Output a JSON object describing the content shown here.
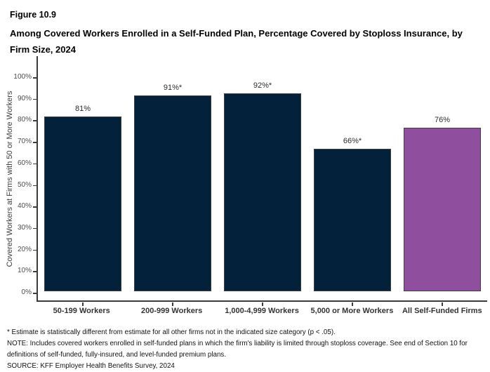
{
  "figure": {
    "number": "Figure 10.9",
    "title": "Among Covered Workers Enrolled in a Self-Funded Plan, Percentage Covered by Stoploss Insurance, by Firm Size, 2024"
  },
  "chart_data": {
    "type": "bar",
    "title": "Among Covered Workers Enrolled in a Self-Funded Plan, Percentage Covered by Stoploss Insurance, by Firm Size, 2024",
    "categories": [
      "50-199 Workers",
      "200-999 Workers",
      "1,000-4,999 Workers",
      "5,000 or More Workers",
      "All Self-Funded Firms"
    ],
    "values": [
      81,
      91,
      92,
      66,
      76
    ],
    "bar_labels": [
      "81%",
      "91%*",
      "92%*",
      "66%*",
      "76%"
    ],
    "bar_colors": [
      "#03213A",
      "#03213A",
      "#03213A",
      "#03213A",
      "#8F4F9E"
    ],
    "xlabel": "",
    "ylabel": "Covered Workers at Firms with 50 or More Workers",
    "ylim": [
      0,
      100
    ],
    "yticks": [
      0,
      10,
      20,
      30,
      40,
      50,
      60,
      70,
      80,
      90,
      100
    ],
    "ytick_labels": [
      "0%",
      "10%",
      "20%",
      "30%",
      "40%",
      "50%",
      "60%",
      "70%",
      "80%",
      "90%",
      "100%"
    ],
    "grid": false,
    "legend": "none"
  },
  "footnotes": {
    "asterisk": "* Estimate is statistically different from estimate for all other firms not in the indicated size category (p < .05).",
    "note": "NOTE: Includes covered workers enrolled in self-funded plans in which the firm's liability is limited through stoploss coverage. See end of Section 10 for definitions of self-funded, fully-insured, and level-funded premium plans.",
    "source": "SOURCE: KFF Employer Health Benefits Survey, 2024"
  },
  "colors": {
    "bar_primary": "#03213A",
    "bar_accent": "#8F4F9E",
    "axis": "#3C3C3C",
    "tick_label": "#4D4D4D"
  }
}
